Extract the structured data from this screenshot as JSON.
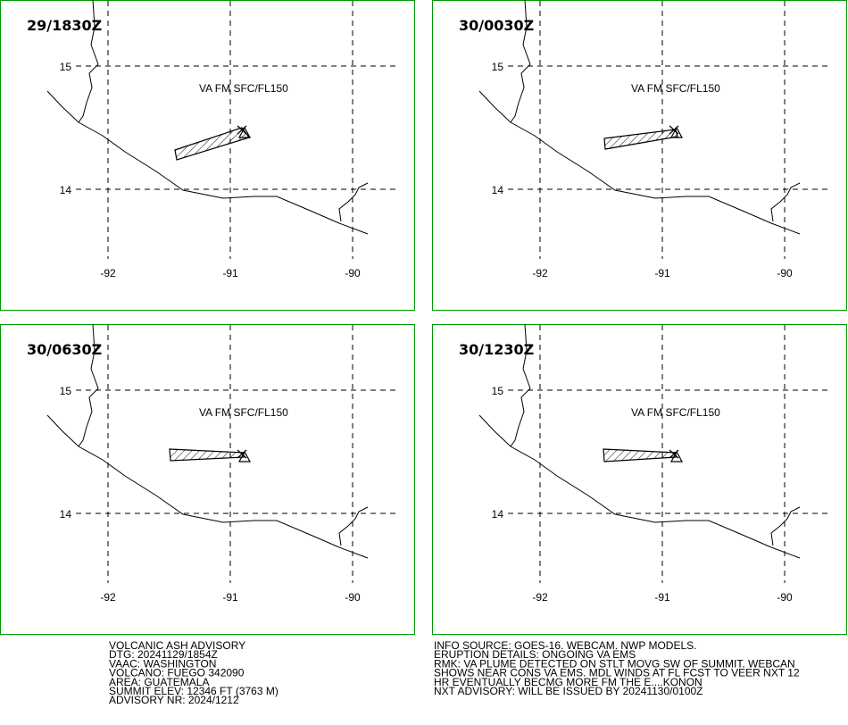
{
  "panels": [
    {
      "time": "29/1830Z",
      "label": "VA FM SFC/FL150",
      "lat_labels": [
        "15",
        "14"
      ],
      "lon_labels": [
        "-92",
        "-91",
        "-90"
      ]
    },
    {
      "time": "30/0030Z",
      "label": "VA FM SFC/FL150",
      "lat_labels": [
        "15",
        "14"
      ],
      "lon_labels": [
        "-92",
        "-91",
        "-90"
      ]
    },
    {
      "time": "30/0630Z",
      "label": "VA FM SFC/FL150",
      "lat_labels": [
        "15",
        "14"
      ],
      "lon_labels": [
        "-92",
        "-91",
        "-90"
      ]
    },
    {
      "time": "30/1230Z",
      "label": "VA FM SFC/FL150",
      "lat_labels": [
        "15",
        "14"
      ],
      "lon_labels": [
        "-92",
        "-91",
        "-90"
      ]
    }
  ],
  "footer": {
    "left": [
      "VOLCANIC ASH ADVISORY",
      "DTG: 20241129/1854Z",
      "VAAC: WASHINGTON",
      "VOLCANO: FUEGO 342090",
      "AREA: GUATEMALA",
      "SUMMIT ELEV: 12346 FT (3763 M)",
      "ADVISORY NR: 2024/1212"
    ],
    "right": [
      "INFO SOURCE: GOES-16. WEBCAM. NWP MODELS.",
      "ERUPTION DETAILS: ONGOING VA EMS",
      "RMK: VA PLUME DETECTED ON STLT MOVG SW OF SUMMIT. WEBCAN",
      "SHOWS NEAR CONS VA EMS. MDL WINDS AT FL FCST TO VEER NXT 12",
      "HR EVENTUALLY BECMG MORE FM THE E....KONON",
      "NXT ADVISORY: WILL BE ISSUED BY 20241130/0100Z"
    ]
  }
}
